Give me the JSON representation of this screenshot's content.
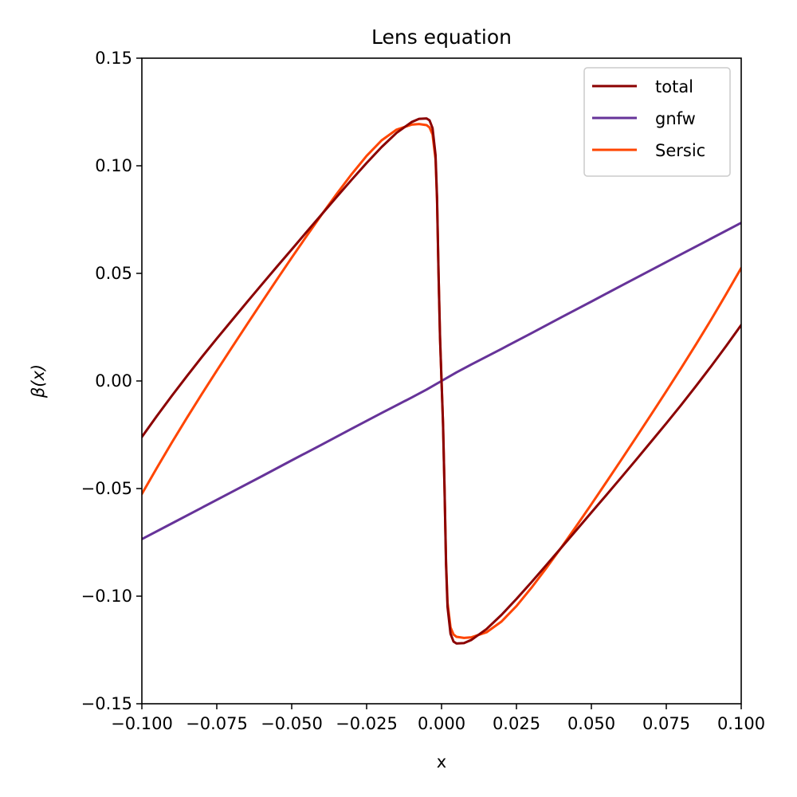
{
  "chart_data": {
    "type": "line",
    "title": "Lens equation",
    "xlabel": "x",
    "ylabel": "β(x)",
    "xlim": [
      -0.1,
      0.1
    ],
    "ylim": [
      -0.15,
      0.15
    ],
    "grid": false,
    "legend_position": "top-right",
    "x_ticks": [
      -0.1,
      -0.075,
      -0.05,
      -0.025,
      0.0,
      0.025,
      0.05,
      0.075,
      0.1
    ],
    "x_tick_labels": [
      "−0.100",
      "−0.075",
      "−0.050",
      "−0.025",
      "0.000",
      "0.025",
      "0.050",
      "0.075",
      "0.100"
    ],
    "y_ticks": [
      -0.15,
      -0.1,
      -0.05,
      0.0,
      0.05,
      0.1,
      0.15
    ],
    "y_tick_labels": [
      "−0.15",
      "−0.10",
      "−0.05",
      "0.00",
      "0.05",
      "0.10",
      "0.15"
    ],
    "series": [
      {
        "name": "total",
        "color": "#8b0000",
        "points": [
          [
            -0.1,
            -0.026
          ],
          [
            -0.095,
            -0.0163
          ],
          [
            -0.09,
            -0.0069
          ],
          [
            -0.085,
            0.0022
          ],
          [
            -0.08,
            0.0111
          ],
          [
            -0.075,
            0.0197
          ],
          [
            -0.07,
            0.0281
          ],
          [
            -0.065,
            0.0365
          ],
          [
            -0.06,
            0.0448
          ],
          [
            -0.055,
            0.053
          ],
          [
            -0.05,
            0.0611
          ],
          [
            -0.045,
            0.0693
          ],
          [
            -0.04,
            0.0774
          ],
          [
            -0.035,
            0.0855
          ],
          [
            -0.03,
            0.0935
          ],
          [
            -0.025,
            0.1013
          ],
          [
            -0.02,
            0.1087
          ],
          [
            -0.015,
            0.1153
          ],
          [
            -0.01,
            0.1203
          ],
          [
            -0.0075,
            0.1218
          ],
          [
            -0.005,
            0.122
          ],
          [
            -0.004,
            0.1211
          ],
          [
            -0.003,
            0.1175
          ],
          [
            -0.002,
            0.105
          ],
          [
            -0.0015,
            0.085
          ],
          [
            -0.001,
            0.05
          ],
          [
            -0.0005,
            0.02
          ],
          [
            0.0,
            0.0
          ],
          [
            0.0005,
            -0.02
          ],
          [
            0.001,
            -0.05
          ],
          [
            0.0015,
            -0.085
          ],
          [
            0.002,
            -0.105
          ],
          [
            0.003,
            -0.1175
          ],
          [
            0.004,
            -0.1211
          ],
          [
            0.005,
            -0.122
          ],
          [
            0.0075,
            -0.1218
          ],
          [
            0.01,
            -0.1203
          ],
          [
            0.015,
            -0.1153
          ],
          [
            0.02,
            -0.1087
          ],
          [
            0.025,
            -0.1013
          ],
          [
            0.03,
            -0.0935
          ],
          [
            0.035,
            -0.0855
          ],
          [
            0.04,
            -0.0774
          ],
          [
            0.045,
            -0.0693
          ],
          [
            0.05,
            -0.0611
          ],
          [
            0.055,
            -0.053
          ],
          [
            0.06,
            -0.0448
          ],
          [
            0.065,
            -0.0365
          ],
          [
            0.07,
            -0.0281
          ],
          [
            0.075,
            -0.0197
          ],
          [
            0.08,
            -0.0111
          ],
          [
            0.085,
            -0.0022
          ],
          [
            0.09,
            0.0069
          ],
          [
            0.095,
            0.0163
          ],
          [
            0.1,
            0.026
          ]
        ]
      },
      {
        "name": "gnfw",
        "color": "#663399",
        "points": [
          [
            -0.1,
            -0.0735
          ],
          [
            -0.09,
            -0.0662
          ],
          [
            -0.08,
            -0.0589
          ],
          [
            -0.07,
            -0.0516
          ],
          [
            -0.06,
            -0.0443
          ],
          [
            -0.05,
            -0.0369
          ],
          [
            -0.04,
            -0.0296
          ],
          [
            -0.03,
            -0.0222
          ],
          [
            -0.02,
            -0.0149
          ],
          [
            -0.01,
            -0.0077
          ],
          [
            -0.005,
            -0.004
          ],
          [
            0.0,
            0.0
          ],
          [
            0.005,
            0.004
          ],
          [
            0.01,
            0.0077
          ],
          [
            0.02,
            0.0149
          ],
          [
            0.03,
            0.0222
          ],
          [
            0.04,
            0.0296
          ],
          [
            0.05,
            0.0369
          ],
          [
            0.06,
            0.0443
          ],
          [
            0.07,
            0.0516
          ],
          [
            0.08,
            0.0589
          ],
          [
            0.09,
            0.0662
          ],
          [
            0.1,
            0.0735
          ]
        ]
      },
      {
        "name": "Sersic",
        "color": "#ff4500",
        "points": [
          [
            -0.1,
            -0.0525
          ],
          [
            -0.095,
            -0.0404
          ],
          [
            -0.09,
            -0.0286
          ],
          [
            -0.085,
            -0.0172
          ],
          [
            -0.08,
            -0.0061
          ],
          [
            -0.075,
            0.0048
          ],
          [
            -0.07,
            0.0155
          ],
          [
            -0.065,
            0.0261
          ],
          [
            -0.06,
            0.0366
          ],
          [
            -0.055,
            0.047
          ],
          [
            -0.05,
            0.0573
          ],
          [
            -0.045,
            0.0674
          ],
          [
            -0.04,
            0.0773
          ],
          [
            -0.035,
            0.0869
          ],
          [
            -0.03,
            0.0961
          ],
          [
            -0.025,
            0.1046
          ],
          [
            -0.02,
            0.1118
          ],
          [
            -0.015,
            0.1168
          ],
          [
            -0.01,
            0.1191
          ],
          [
            -0.0075,
            0.1194
          ],
          [
            -0.005,
            0.1189
          ],
          [
            -0.004,
            0.1178
          ],
          [
            -0.003,
            0.1145
          ],
          [
            -0.002,
            0.103
          ],
          [
            -0.0015,
            0.084
          ],
          [
            -0.001,
            0.05
          ],
          [
            -0.0005,
            0.02
          ],
          [
            0.0,
            0.0
          ],
          [
            0.0005,
            -0.02
          ],
          [
            0.001,
            -0.05
          ],
          [
            0.0015,
            -0.084
          ],
          [
            0.002,
            -0.103
          ],
          [
            0.003,
            -0.1145
          ],
          [
            0.004,
            -0.1178
          ],
          [
            0.005,
            -0.1189
          ],
          [
            0.0075,
            -0.1194
          ],
          [
            0.01,
            -0.1191
          ],
          [
            0.015,
            -0.1168
          ],
          [
            0.02,
            -0.1118
          ],
          [
            0.025,
            -0.1046
          ],
          [
            0.03,
            -0.0961
          ],
          [
            0.035,
            -0.0869
          ],
          [
            0.04,
            -0.0773
          ],
          [
            0.045,
            -0.0674
          ],
          [
            0.05,
            -0.0573
          ],
          [
            0.055,
            -0.047
          ],
          [
            0.06,
            -0.0366
          ],
          [
            0.065,
            -0.0261
          ],
          [
            0.07,
            -0.0155
          ],
          [
            0.075,
            -0.0048
          ],
          [
            0.08,
            0.0061
          ],
          [
            0.085,
            0.0172
          ],
          [
            0.09,
            0.0286
          ],
          [
            0.095,
            0.0404
          ],
          [
            0.1,
            0.0525
          ]
        ]
      }
    ]
  }
}
